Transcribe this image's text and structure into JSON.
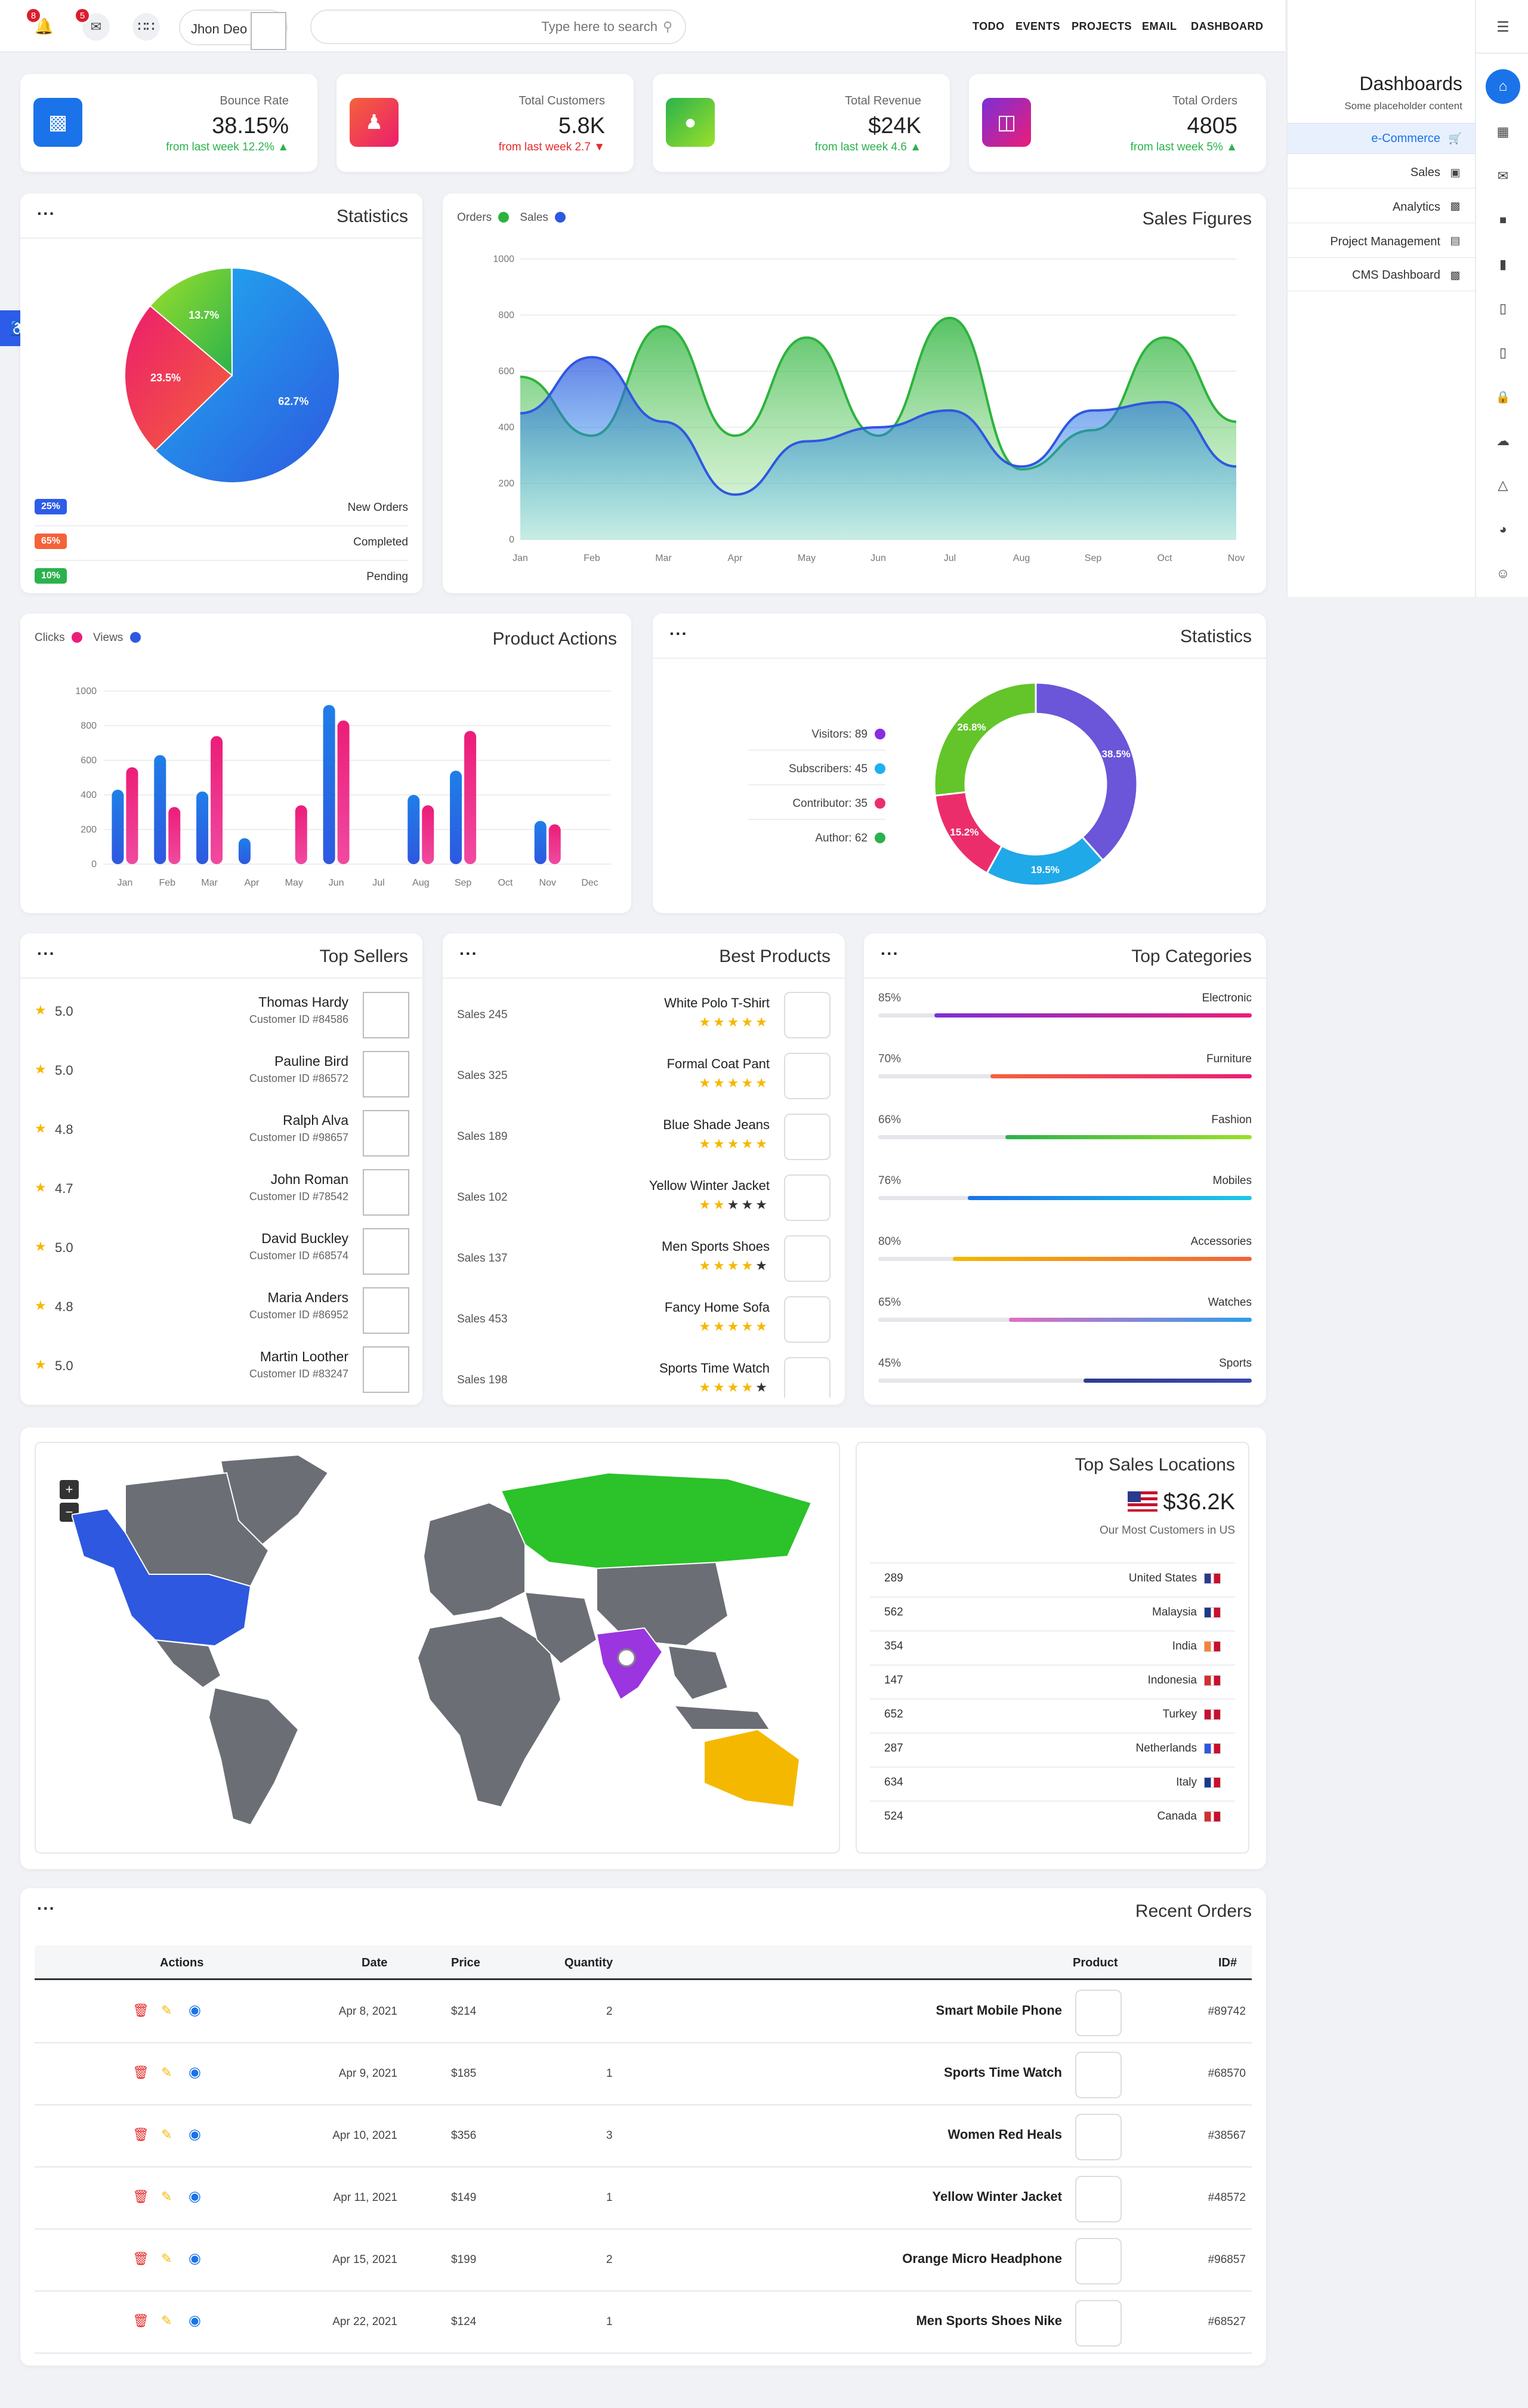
{
  "topbar": {
    "bell_count": "8",
    "messenger_count": "5",
    "user_name": "Jhon Deo",
    "search_placeholder": "Type here to search",
    "nav": [
      "TODO",
      "EVENTS",
      "PROJECTS",
      "EMAIL",
      "DASHBOARD"
    ]
  },
  "sidebar": {
    "title": "Dashboards",
    "subtitle": "Some placeholder content",
    "items": [
      {
        "label": "e-Commerce",
        "icon": "cart-icon",
        "active": true
      },
      {
        "label": "Sales",
        "icon": "window-icon"
      },
      {
        "label": "Analytics",
        "icon": "bar-chart-icon"
      },
      {
        "label": "Project Management",
        "icon": "folder-icon"
      },
      {
        "label": "CMS Dashboard",
        "icon": "monitor-icon"
      }
    ]
  },
  "stats": [
    {
      "label": "Bounce Rate",
      "value": "38.15%",
      "trend": "from last week 12.2%",
      "dir": "up",
      "color": "#1a73e8"
    },
    {
      "label": "Total Customers",
      "value": "5.8K",
      "trend": "from last week 2.7",
      "dir": "down",
      "color": "#f44336"
    },
    {
      "label": "Total Revenue",
      "value": "$24K",
      "trend": "from last week 4.6",
      "dir": "up",
      "color": "#43b02a"
    },
    {
      "label": "Total Orders",
      "value": "4805",
      "trend": "from last week 5%",
      "dir": "up",
      "color": "#c2189b"
    }
  ],
  "statistics": {
    "title": "Statistics",
    "rows": [
      {
        "pill": "25%",
        "label": "New Orders",
        "color": "#2c5ce8"
      },
      {
        "pill": "65%",
        "label": "Completed",
        "color": "#f4623a"
      },
      {
        "pill": "10%",
        "label": "Pending",
        "color": "#2bb24c"
      }
    ]
  },
  "pie_chart": {
    "type": "pie",
    "slices": [
      {
        "label": "62.7%",
        "value": 62.7,
        "color": "#1e88e5"
      },
      {
        "label": "23.5%",
        "value": 23.5,
        "color": "#ec2d5c"
      },
      {
        "label": "13.7%",
        "value": 13.7,
        "color": "#40b824"
      }
    ]
  },
  "chart_data": [
    {
      "type": "area",
      "title": "Sales Figures",
      "x": [
        "Jan",
        "Feb",
        "Mar",
        "Apr",
        "May",
        "Jun",
        "Jul",
        "Aug",
        "Sep",
        "Oct",
        "Nov"
      ],
      "ylim": [
        0,
        1000
      ],
      "yticks": [
        0,
        200,
        400,
        600,
        800,
        1000
      ],
      "grid": true,
      "legend": "top-left",
      "series": [
        {
          "name": "Orders",
          "color": "#2db33d",
          "values": [
            580,
            370,
            760,
            370,
            720,
            370,
            790,
            250,
            390,
            720,
            420
          ]
        },
        {
          "name": "Sales",
          "color": "#2e58e0",
          "values": [
            450,
            650,
            420,
            160,
            350,
            400,
            460,
            260,
            460,
            490,
            260
          ]
        }
      ]
    },
    {
      "type": "bar",
      "title": "Product Actions",
      "categories": [
        "Jan",
        "Feb",
        "Mar",
        "Apr",
        "May",
        "Jun",
        "Jul",
        "Aug",
        "Sep",
        "Oct",
        "Nov",
        "Dec"
      ],
      "ylim": [
        0,
        1000
      ],
      "yticks": [
        0,
        200,
        400,
        600,
        800,
        1000
      ],
      "grid": true,
      "legend": "top-left",
      "series": [
        {
          "name": "Clicks",
          "color": "#ec1d78",
          "values": [
            560,
            330,
            740,
            0,
            340,
            830,
            0,
            340,
            770,
            0,
            230,
            0
          ]
        },
        {
          "name": "Views",
          "color": "#2e58e0",
          "values": [
            430,
            630,
            420,
            150,
            0,
            920,
            0,
            400,
            540,
            0,
            250,
            0
          ]
        }
      ]
    },
    {
      "type": "pie",
      "title": "Statistics",
      "categories": [
        "Visitors",
        "Subscribers",
        "Contributor",
        "Author"
      ],
      "values": [
        89,
        45,
        35,
        62
      ],
      "legend": "left",
      "slices": [
        {
          "label": "38.5%",
          "value": 38.5,
          "color": "#6b55d8"
        },
        {
          "label": "19.5%",
          "value": 19.5,
          "color": "#1fa9e8"
        },
        {
          "label": "15.2%",
          "value": 15.2,
          "color": "#ec2d6c"
        },
        {
          "label": "26.8%",
          "value": 26.8,
          "color": "#63c52a"
        }
      ]
    }
  ],
  "donut_legend": [
    {
      "label": "Visitors: 89",
      "color": "#8a2be2"
    },
    {
      "label": "Subscribers: 45",
      "color": "#1fb0f0"
    },
    {
      "label": "Contributor: 35",
      "color": "#ec2d6c"
    },
    {
      "label": "Author: 62",
      "color": "#2bb24c"
    }
  ],
  "top_sellers": {
    "title": "Top Sellers",
    "rows": [
      {
        "rating": "5.0",
        "name": "Thomas Hardy",
        "id": "Customer ID #84586"
      },
      {
        "rating": "5.0",
        "name": "Pauline Bird",
        "id": "Customer ID #86572"
      },
      {
        "rating": "4.8",
        "name": "Ralph Alva",
        "id": "Customer ID #98657"
      },
      {
        "rating": "4.7",
        "name": "John Roman",
        "id": "Customer ID #78542"
      },
      {
        "rating": "5.0",
        "name": "David Buckley",
        "id": "Customer ID #68574"
      },
      {
        "rating": "4.8",
        "name": "Maria Anders",
        "id": "Customer ID #86952"
      },
      {
        "rating": "5.0",
        "name": "Martin Loother",
        "id": "Customer ID #83247"
      }
    ]
  },
  "best_products": {
    "title": "Best Products",
    "rows": [
      {
        "sales": "Sales 245",
        "name": "White Polo T-Shirt",
        "stars": 5
      },
      {
        "sales": "Sales 325",
        "name": "Formal Coat Pant",
        "stars": 5
      },
      {
        "sales": "Sales 189",
        "name": "Blue Shade Jeans",
        "stars": 5
      },
      {
        "sales": "Sales 102",
        "name": "Yellow Winter Jacket",
        "stars": 2
      },
      {
        "sales": "Sales 137",
        "name": "Men Sports Shoes",
        "stars": 4
      },
      {
        "sales": "Sales 453",
        "name": "Fancy Home Sofa",
        "stars": 5
      },
      {
        "sales": "Sales 198",
        "name": "Sports Time Watch",
        "stars": 4
      }
    ]
  },
  "top_categories": {
    "title": "Top Categories",
    "rows": [
      {
        "pct": "85%",
        "label": "Electronic",
        "value": 0.85,
        "from": "#7b2fd6",
        "to": "#ec1d78"
      },
      {
        "pct": "70%",
        "label": "Furniture",
        "value": 0.7,
        "from": "#f4623a",
        "to": "#ec1d78"
      },
      {
        "pct": "66%",
        "label": "Fashion",
        "value": 0.66,
        "from": "#2bb24c",
        "to": "#9be02a"
      },
      {
        "pct": "76%",
        "label": "Mobiles",
        "value": 0.76,
        "from": "#1a73e8",
        "to": "#1fc8e8"
      },
      {
        "pct": "80%",
        "label": "Accessories",
        "value": 0.8,
        "from": "#f5b800",
        "to": "#f4623a"
      },
      {
        "pct": "65%",
        "label": "Watches",
        "value": 0.65,
        "from": "#e06fc0",
        "to": "#2c9ee8"
      },
      {
        "pct": "45%",
        "label": "Sports",
        "value": 0.45,
        "from": "#2c3e8c",
        "to": "#3a4ab0"
      }
    ]
  },
  "locations": {
    "title": "Top Sales Locations",
    "amount": "$36.2K",
    "subtitle": "Our Most Customers in US",
    "rows": [
      {
        "count": "289",
        "country": "United States"
      },
      {
        "count": "562",
        "country": "Malaysia"
      },
      {
        "count": "354",
        "country": "India"
      },
      {
        "count": "147",
        "country": "Indonesia"
      },
      {
        "count": "652",
        "country": "Turkey"
      },
      {
        "count": "287",
        "country": "Netherlands"
      },
      {
        "count": "634",
        "country": "Italy"
      },
      {
        "count": "524",
        "country": "Canada"
      }
    ]
  },
  "map": {
    "zoom_in": "+",
    "zoom_out": "−",
    "highlight": {
      "north-america": "#2e58e0",
      "russia": "#2bc22a",
      "india": "#9b35e0",
      "australia": "#f5b800"
    }
  },
  "orders": {
    "title": "Recent Orders",
    "headers": {
      "actions": "Actions",
      "date": "Date",
      "price": "Price",
      "qty": "Quantity",
      "product": "Product",
      "id": "ID#"
    },
    "rows": [
      {
        "date": "Apr 8, 2021",
        "price": "$214",
        "qty": "2",
        "product": "Smart Mobile Phone",
        "id": "#89742"
      },
      {
        "date": "Apr 9, 2021",
        "price": "$185",
        "qty": "1",
        "product": "Sports Time Watch",
        "id": "#68570"
      },
      {
        "date": "Apr 10, 2021",
        "price": "$356",
        "qty": "3",
        "product": "Women Red Heals",
        "id": "#38567"
      },
      {
        "date": "Apr 11, 2021",
        "price": "$149",
        "qty": "1",
        "product": "Yellow Winter Jacket",
        "id": "#48572"
      },
      {
        "date": "Apr 15, 2021",
        "price": "$199",
        "qty": "2",
        "product": "Orange Micro Headphone",
        "id": "#96857"
      },
      {
        "date": "Apr 22, 2021",
        "price": "$124",
        "qty": "1",
        "product": "Men Sports Shoes Nike",
        "id": "#68527"
      }
    ]
  }
}
